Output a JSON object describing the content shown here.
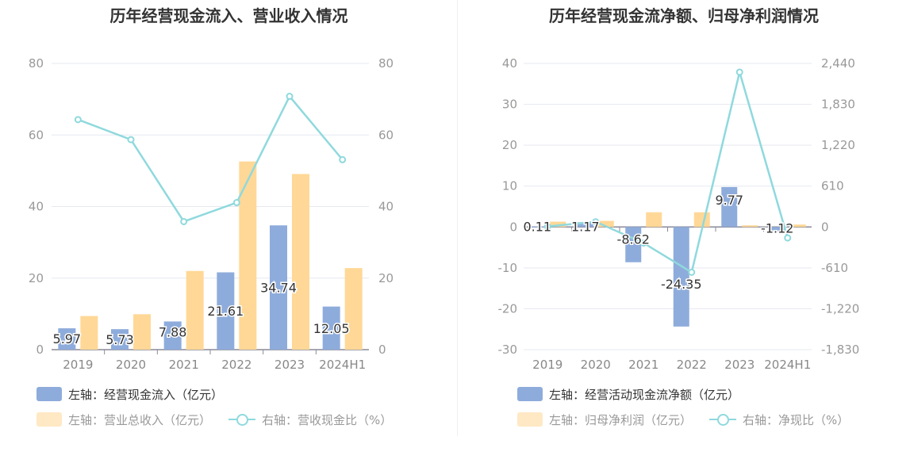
{
  "chart_data": [
    {
      "type": "bar",
      "title": "历年经营现金流入、营业收入情况",
      "categories": [
        "2019",
        "2020",
        "2021",
        "2022",
        "2023",
        "2024H1"
      ],
      "y_left": {
        "ticks": [
          "0",
          "20",
          "40",
          "60",
          "80"
        ],
        "min": 0,
        "max": 80
      },
      "y_right": {
        "ticks": [
          "0",
          "20",
          "40",
          "60",
          "80"
        ],
        "min": 0,
        "max": 80
      },
      "series": [
        {
          "name": "左轴：经营现金流入（亿元）",
          "kind": "bar",
          "axis": "left",
          "color": "#8eacdb",
          "values": [
            5.97,
            5.73,
            7.88,
            21.61,
            34.74,
            12.05
          ],
          "labels": [
            "5.97",
            "5.73",
            "7.88",
            "21.61",
            "34.74",
            "12.05"
          ]
        },
        {
          "name": "左轴：营业总收入（亿元）",
          "kind": "bar",
          "axis": "left",
          "color": "#ffd897",
          "values": [
            9.4,
            9.9,
            22.0,
            52.6,
            49.1,
            22.8
          ]
        },
        {
          "name": "右轴：营收现金比（%）",
          "kind": "line",
          "axis": "right",
          "color": "#8fd9dd",
          "values": [
            64.3,
            58.7,
            35.8,
            41.1,
            70.8,
            53.1
          ]
        }
      ],
      "legend": "bottom"
    },
    {
      "type": "bar",
      "title": "历年经营现金流净额、归母净利润情况",
      "categories": [
        "2019",
        "2020",
        "2021",
        "2022",
        "2023",
        "2024H1"
      ],
      "y_left": {
        "ticks": [
          "-30",
          "-20",
          "-10",
          "0",
          "10",
          "20",
          "30",
          "40"
        ],
        "min": -30,
        "max": 40
      },
      "y_right": {
        "ticks": [
          "-1,830",
          "-1,220",
          "-610",
          "0",
          "610",
          "1,220",
          "1,830",
          "2,440"
        ],
        "min": -1830,
        "max": 2440
      },
      "series": [
        {
          "name": "左轴：经营活动现金流净额（亿元）",
          "kind": "bar",
          "axis": "left",
          "color": "#8eacdb",
          "values": [
            0.11,
            1.17,
            -8.62,
            -24.35,
            9.77,
            -1.12
          ],
          "labels": [
            "0.11",
            "1.17",
            "-8.62",
            "-24.35",
            "9.77",
            "-1.12"
          ]
        },
        {
          "name": "左轴：归母净利润（亿元）",
          "kind": "bar",
          "axis": "left",
          "color": "#ffd897",
          "values": [
            1.3,
            1.5,
            3.6,
            3.6,
            0.4,
            0.6
          ]
        },
        {
          "name": "右轴：净现比（%）",
          "kind": "line",
          "axis": "right",
          "color": "#8fd9dd",
          "values": [
            8,
            78,
            -240,
            -676,
            2310,
            -163
          ]
        }
      ],
      "legend": "bottom"
    }
  ]
}
